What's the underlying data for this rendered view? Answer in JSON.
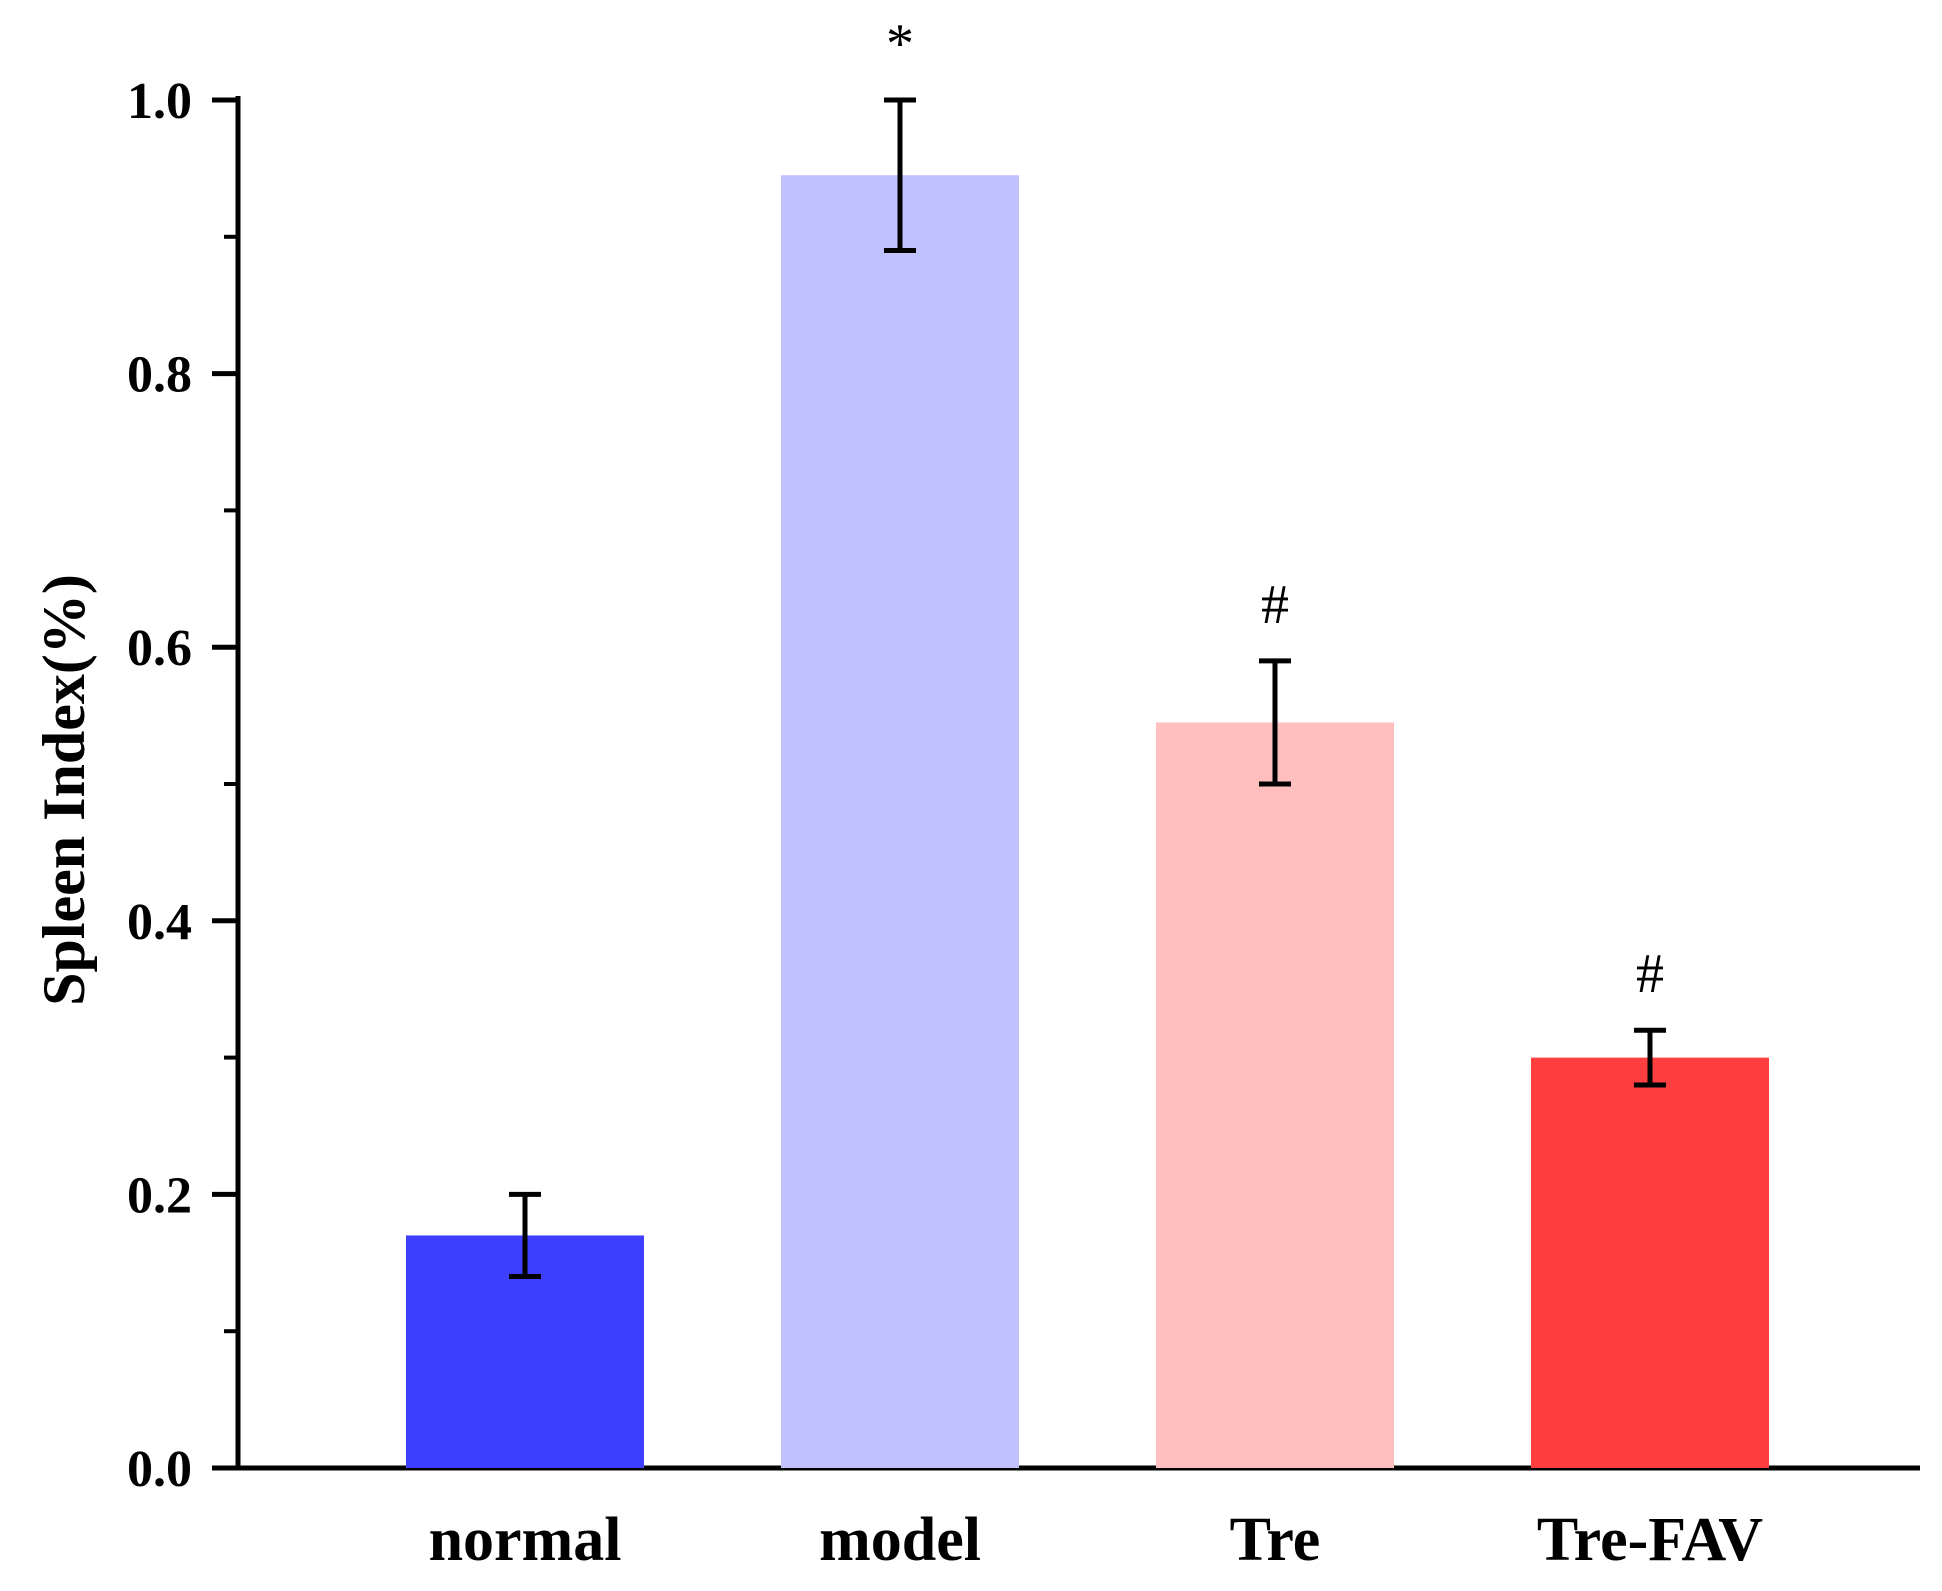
{
  "chart_data": {
    "type": "bar",
    "title": "",
    "xlabel": "",
    "ylabel": "Spleen Index(%)",
    "ylim": [
      0,
      1.0
    ],
    "yticks": [
      0.0,
      0.2,
      0.4,
      0.6,
      0.8,
      1.0
    ],
    "ytick_labels": [
      "0.0",
      "0.2",
      "0.4",
      "0.6",
      "0.8",
      "1.0"
    ],
    "grid": false,
    "categories": [
      "normal",
      "model",
      "Tre",
      "Tre-FAV"
    ],
    "values": [
      0.17,
      0.945,
      0.545,
      0.3
    ],
    "errors": [
      0.03,
      0.055,
      0.045,
      0.02
    ],
    "colors": [
      "#3f3fff",
      "#c1c1ff",
      "#ffbfbf",
      "#ff3f3f"
    ],
    "annotations": [
      "",
      "*",
      "#",
      "#"
    ]
  }
}
